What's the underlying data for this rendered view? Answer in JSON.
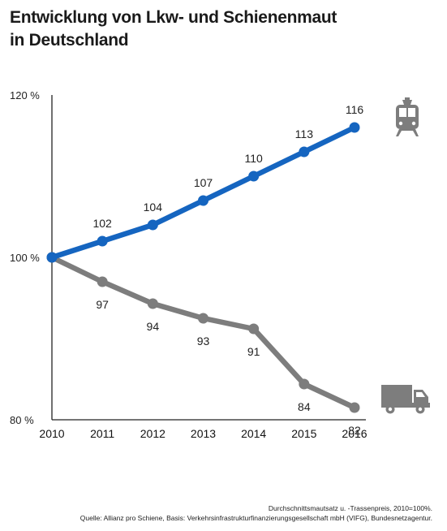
{
  "title": {
    "line1": "Entwicklung von Lkw- und Schienenmaut",
    "line2": "in Deutschland"
  },
  "chart_data": {
    "type": "line",
    "x": [
      "2010",
      "2011",
      "2012",
      "2013",
      "2014",
      "2015",
      "2016"
    ],
    "y_ticks": [
      "120 %",
      "100 %",
      "80 %"
    ],
    "ylim": [
      80,
      120
    ],
    "grid": false,
    "series": [
      {
        "key": "rail",
        "color": "#1565c0",
        "values": [
          100,
          102,
          104,
          107,
          110,
          113,
          116
        ],
        "labels": [
          "",
          "102",
          "104",
          "107",
          "110",
          "113",
          "116"
        ],
        "label_position": "above",
        "icon": "train-icon"
      },
      {
        "key": "truck",
        "color": "#7d7d7d",
        "values": [
          100,
          97,
          94.3,
          92.5,
          91.2,
          84.4,
          81.5
        ],
        "labels": [
          "",
          "97",
          "94",
          "93",
          "91",
          "84",
          "82"
        ],
        "label_position": "below",
        "icon": "truck-icon"
      }
    ]
  },
  "notes": {
    "line1": "Durchschnittsmautsatz u. -Trassenpreis, 2010=100%.",
    "line2": "Quelle: Allianz pro Schiene, Basis: Verkehrsinfrastrukturfinanzierungsgesellschaft mbH (VIFG), Bundesnetzagentur."
  }
}
